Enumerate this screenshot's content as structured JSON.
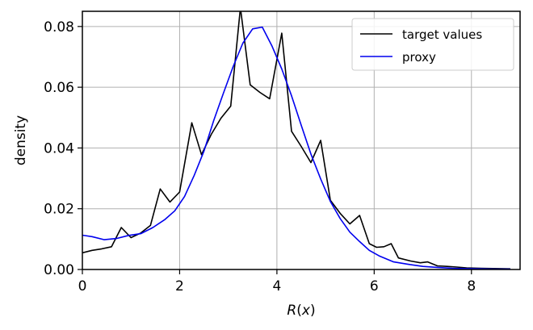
{
  "chart_data": {
    "type": "line",
    "xlabel_prefix": "R",
    "xlabel_paren": "(x)",
    "xlabel_var": "x",
    "ylabel": "density",
    "xlim": [
      0,
      9
    ],
    "ylim": [
      0,
      0.085
    ],
    "xticks": [
      0,
      2,
      4,
      6,
      8
    ],
    "xtick_labels": [
      "0",
      "2",
      "4",
      "6",
      "8"
    ],
    "yticks": [
      0,
      0.02,
      0.04,
      0.06,
      0.08
    ],
    "ytick_labels": [
      "0.00",
      "0.02",
      "0.04",
      "0.06",
      "0.08"
    ],
    "grid": true,
    "legend_position": "top-right",
    "series": [
      {
        "name": "target values",
        "color": "#000000",
        "x": [
          0,
          0.2,
          0.4,
          0.6,
          0.8,
          1.0,
          1.2,
          1.4,
          1.6,
          1.8,
          2.0,
          2.25,
          2.45,
          2.65,
          2.85,
          3.05,
          3.25,
          3.45,
          3.65,
          3.85,
          4.1,
          4.3,
          4.5,
          4.7,
          4.9,
          5.1,
          5.3,
          5.5,
          5.7,
          5.9,
          6.05,
          6.2,
          6.35,
          6.5,
          6.75,
          6.95,
          7.1,
          7.3,
          7.5,
          7.7,
          7.9,
          8.2,
          8.8
        ],
        "y": [
          0.0055,
          0.0063,
          0.0068,
          0.0075,
          0.0138,
          0.0105,
          0.012,
          0.0145,
          0.0265,
          0.0222,
          0.0255,
          0.0483,
          0.0378,
          0.0445,
          0.0498,
          0.0538,
          0.0862,
          0.0608,
          0.0583,
          0.0562,
          0.0778,
          0.0455,
          0.0405,
          0.0352,
          0.0425,
          0.0228,
          0.0185,
          0.015,
          0.0178,
          0.0085,
          0.0073,
          0.0075,
          0.0085,
          0.0038,
          0.0028,
          0.0022,
          0.0025,
          0.0012,
          0.001,
          0.0008,
          0.0005,
          0.0004,
          0.0002
        ]
      },
      {
        "name": "proxy",
        "color": "#0000ee",
        "x": [
          0,
          0.2,
          0.45,
          0.7,
          0.95,
          1.2,
          1.45,
          1.7,
          1.9,
          2.1,
          2.3,
          2.5,
          2.7,
          2.9,
          3.1,
          3.3,
          3.5,
          3.7,
          3.9,
          4.1,
          4.3,
          4.5,
          4.7,
          4.9,
          5.1,
          5.3,
          5.5,
          5.7,
          5.9,
          6.1,
          6.4,
          6.7,
          7.0,
          7.3,
          7.6,
          7.9,
          8.2,
          8.5,
          8.8
        ],
        "y": [
          0.0113,
          0.0108,
          0.0098,
          0.0102,
          0.0112,
          0.0118,
          0.0138,
          0.0165,
          0.0193,
          0.024,
          0.031,
          0.039,
          0.049,
          0.058,
          0.0668,
          0.0745,
          0.0792,
          0.0798,
          0.0735,
          0.066,
          0.0572,
          0.0475,
          0.038,
          0.0298,
          0.0224,
          0.0168,
          0.0123,
          0.0092,
          0.0063,
          0.0045,
          0.0025,
          0.0017,
          0.001,
          0.0007,
          0.0004,
          0.0003,
          0.0002,
          0.0001,
          0.0001
        ]
      }
    ]
  }
}
